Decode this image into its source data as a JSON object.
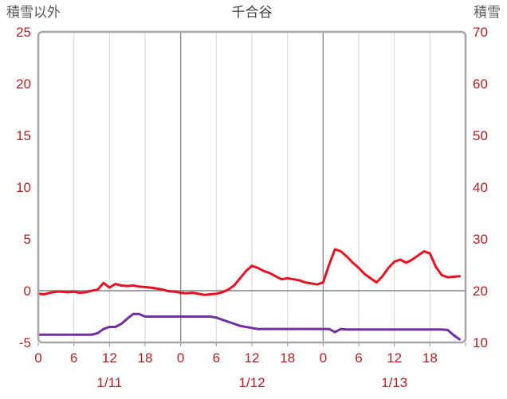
{
  "header": {
    "left_axis_title": "積雪以外",
    "title": "千合谷",
    "right_axis_title": "積雪"
  },
  "style": {
    "background": "#FFFFFF",
    "axis_label_color": "#B22222",
    "header_color": "#595959",
    "title_color": "#404040",
    "border_color": "#A6A6A6",
    "major_grid_color": "#8C8C8C",
    "minor_grid_color": "#D6D6D6",
    "zero_line_color": "#808080",
    "tick_color": "#A6A6A6"
  },
  "chart_data": {
    "type": "line",
    "title": "千合谷",
    "x_unit": "hour",
    "x_range": [
      0,
      72
    ],
    "x_tick_step": 6,
    "x_ticks": [
      {
        "hour": 0,
        "label": "0"
      },
      {
        "hour": 6,
        "label": "6"
      },
      {
        "hour": 12,
        "label": "12"
      },
      {
        "hour": 18,
        "label": "18"
      },
      {
        "hour": 24,
        "label": "0"
      },
      {
        "hour": 30,
        "label": "6"
      },
      {
        "hour": 36,
        "label": "12"
      },
      {
        "hour": 42,
        "label": "18"
      },
      {
        "hour": 48,
        "label": "0"
      },
      {
        "hour": 54,
        "label": "6"
      },
      {
        "hour": 60,
        "label": "12"
      },
      {
        "hour": 66,
        "label": "18"
      }
    ],
    "x_date_labels": [
      {
        "hour": 12,
        "label": "1/11"
      },
      {
        "hour": 36,
        "label": "1/12"
      },
      {
        "hour": 60,
        "label": "1/13"
      }
    ],
    "y_left": {
      "title": "積雪以外",
      "min": -5,
      "max": 25,
      "ticks": [
        -5,
        0,
        5,
        10,
        15,
        20,
        25
      ]
    },
    "y_right": {
      "title": "積雪",
      "min": 10,
      "max": 70,
      "ticks": [
        10,
        20,
        30,
        40,
        50,
        60,
        70
      ]
    },
    "grid": {
      "vertical_minor_every": 6,
      "vertical_major_every": 24,
      "horizontal_zero_line": true
    },
    "legend": "none",
    "series": [
      {
        "id": "other-than-snow",
        "name": "積雪以外",
        "axis": "left",
        "color": "#E81123",
        "width": 3,
        "values": [
          -0.3,
          -0.35,
          -0.2,
          -0.1,
          -0.1,
          -0.15,
          -0.1,
          -0.2,
          -0.15,
          0,
          0.1,
          0.75,
          0.3,
          0.65,
          0.5,
          0.45,
          0.5,
          0.4,
          0.35,
          0.3,
          0.2,
          0.1,
          -0.05,
          -0.1,
          -0.2,
          -0.25,
          -0.2,
          -0.3,
          -0.4,
          -0.35,
          -0.3,
          -0.15,
          0.1,
          0.5,
          1.2,
          1.9,
          2.4,
          2.2,
          1.9,
          1.7,
          1.4,
          1.1,
          1.2,
          1.1,
          1.0,
          0.8,
          0.7,
          0.6,
          0.8,
          2.5,
          4.0,
          3.8,
          3.3,
          2.7,
          2.2,
          1.6,
          1.2,
          0.8,
          1.4,
          2.2,
          2.8,
          3.0,
          2.7,
          3.0,
          3.4,
          3.8,
          3.6,
          2.3,
          1.5,
          1.3,
          1.35,
          1.4
        ]
      },
      {
        "id": "snow-depth",
        "name": "積雪",
        "axis": "right",
        "color": "#7030A0",
        "width": 3,
        "values": [
          11.5,
          11.5,
          11.5,
          11.5,
          11.5,
          11.5,
          11.5,
          11.5,
          11.5,
          11.5,
          11.8,
          12.6,
          13.0,
          13.0,
          13.6,
          14.6,
          15.5,
          15.5,
          15.0,
          15.0,
          15.0,
          15.0,
          15.0,
          15.0,
          15.0,
          15.0,
          15.0,
          15.0,
          15.0,
          15.0,
          14.8,
          14.4,
          14.0,
          13.6,
          13.2,
          13.0,
          12.8,
          12.6,
          12.6,
          12.6,
          12.6,
          12.6,
          12.6,
          12.6,
          12.6,
          12.6,
          12.6,
          12.6,
          12.6,
          12.6,
          12.0,
          12.6,
          12.5,
          12.5,
          12.5,
          12.5,
          12.5,
          12.5,
          12.5,
          12.5,
          12.5,
          12.5,
          12.5,
          12.5,
          12.5,
          12.5,
          12.5,
          12.5,
          12.5,
          12.4,
          11.4,
          10.6
        ]
      }
    ]
  }
}
